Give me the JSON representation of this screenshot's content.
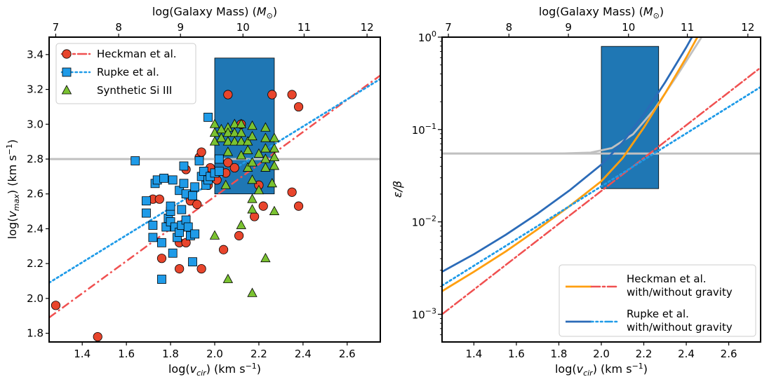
{
  "chart_data": [
    {
      "type": "scatter",
      "panel": "left",
      "xlabel": "log(v_cir) (km s^-1)",
      "ylabel": "log(v_max) (km s^-1)",
      "top_xlabel": "log(Galaxy Mass) (M_⊙)",
      "xlim": [
        1.25,
        2.75
      ],
      "ylim": [
        1.75,
        3.5
      ],
      "xticks": [
        "1.4",
        "1.6",
        "1.8",
        "2.0",
        "2.2",
        "2.4",
        "2.6"
      ],
      "yticks": [
        "1.8",
        "2.0",
        "2.2",
        "2.4",
        "2.6",
        "2.8",
        "3.0",
        "3.2",
        "3.4"
      ],
      "top_ticks": [
        "7",
        "8",
        "9",
        "10",
        "11",
        "12"
      ],
      "top_tick_positions_vcir": [
        1.28,
        1.565,
        1.845,
        2.128,
        2.405,
        2.69
      ],
      "horizontal_line": 2.8,
      "box": {
        "x": [
          2.0,
          2.27
        ],
        "y": [
          2.6,
          3.38
        ],
        "color": "#1f77b4"
      },
      "legend_position": "upper-left",
      "series": [
        {
          "name": "Heckman et al.",
          "marker": "circle",
          "color": "#e8452c",
          "line_color": "#f05050",
          "fit": {
            "x": [
              1.25,
              2.75
            ],
            "y": [
              1.89,
              3.28
            ]
          },
          "points": [
            [
              1.28,
              1.96
            ],
            [
              1.47,
              1.78
            ],
            [
              1.72,
              2.57
            ],
            [
              1.75,
              2.57
            ],
            [
              1.76,
              2.23
            ],
            [
              1.84,
              2.17
            ],
            [
              1.84,
              2.32
            ],
            [
              1.87,
              2.32
            ],
            [
              1.87,
              2.74
            ],
            [
              1.89,
              2.56
            ],
            [
              1.92,
              2.54
            ],
            [
              1.93,
              2.81
            ],
            [
              1.94,
              2.17
            ],
            [
              1.94,
              2.84
            ],
            [
              1.97,
              2.65
            ],
            [
              1.98,
              2.75
            ],
            [
              2.01,
              2.68
            ],
            [
              2.04,
              2.28
            ],
            [
              2.05,
              2.72
            ],
            [
              2.06,
              2.78
            ],
            [
              2.06,
              3.17
            ],
            [
              2.09,
              2.75
            ],
            [
              2.11,
              2.36
            ],
            [
              2.12,
              3.0
            ],
            [
              2.18,
              2.47
            ],
            [
              2.2,
              2.65
            ],
            [
              2.22,
              2.53
            ],
            [
              2.26,
              3.17
            ],
            [
              2.35,
              3.17
            ],
            [
              2.35,
              2.61
            ],
            [
              2.38,
              3.1
            ],
            [
              2.38,
              2.53
            ]
          ]
        },
        {
          "name": "Rupke et al.",
          "marker": "square",
          "color": "#1f9be8",
          "line_color": "#1f9be8",
          "fit": {
            "x": [
              1.25,
              2.75
            ],
            "y": [
              2.09,
              3.26
            ]
          },
          "points": [
            [
              1.64,
              2.79
            ],
            [
              1.69,
              2.49
            ],
            [
              1.69,
              2.56
            ],
            [
              1.72,
              2.42
            ],
            [
              1.72,
              2.35
            ],
            [
              1.73,
              2.66
            ],
            [
              1.74,
              2.68
            ],
            [
              1.76,
              2.32
            ],
            [
              1.76,
              2.11
            ],
            [
              1.77,
              2.69
            ],
            [
              1.78,
              2.41
            ],
            [
              1.79,
              2.46
            ],
            [
              1.8,
              2.5
            ],
            [
              1.8,
              2.53
            ],
            [
              1.8,
              2.44
            ],
            [
              1.81,
              2.26
            ],
            [
              1.81,
              2.68
            ],
            [
              1.82,
              2.41
            ],
            [
              1.83,
              2.35
            ],
            [
              1.84,
              2.38
            ],
            [
              1.84,
              2.62
            ],
            [
              1.85,
              2.42
            ],
            [
              1.85,
              2.51
            ],
            [
              1.86,
              2.66
            ],
            [
              1.86,
              2.76
            ],
            [
              1.87,
              2.45
            ],
            [
              1.87,
              2.6
            ],
            [
              1.88,
              2.41
            ],
            [
              1.89,
              2.36
            ],
            [
              1.9,
              2.21
            ],
            [
              1.9,
              2.59
            ],
            [
              1.91,
              2.37
            ],
            [
              1.91,
              2.64
            ],
            [
              1.93,
              2.79
            ],
            [
              1.94,
              2.7
            ],
            [
              1.95,
              2.73
            ],
            [
              1.96,
              2.65
            ],
            [
              1.97,
              2.68
            ],
            [
              1.98,
              2.7
            ],
            [
              1.97,
              3.04
            ],
            [
              2.0,
              2.72
            ],
            [
              2.02,
              2.8
            ],
            [
              2.02,
              2.73
            ]
          ]
        },
        {
          "name": "Synthetic Si III",
          "marker": "triangle",
          "color": "#7ac231",
          "points": [
            [
              2.0,
              2.36
            ],
            [
              2.06,
              2.11
            ],
            [
              2.05,
              2.65
            ],
            [
              2.06,
              2.98
            ],
            [
              2.0,
              3.0
            ],
            [
              2.0,
              2.95
            ],
            [
              2.0,
              2.9
            ],
            [
              2.03,
              2.97
            ],
            [
              2.03,
              2.92
            ],
            [
              2.06,
              2.95
            ],
            [
              2.06,
              2.9
            ],
            [
              2.06,
              2.84
            ],
            [
              2.09,
              3.0
            ],
            [
              2.09,
              2.95
            ],
            [
              2.09,
              2.9
            ],
            [
              2.12,
              3.0
            ],
            [
              2.12,
              2.95
            ],
            [
              2.12,
              2.9
            ],
            [
              2.12,
              2.82
            ],
            [
              2.12,
              2.42
            ],
            [
              2.15,
              2.9
            ],
            [
              2.15,
              2.85
            ],
            [
              2.15,
              2.75
            ],
            [
              2.17,
              2.99
            ],
            [
              2.17,
              2.93
            ],
            [
              2.17,
              2.78
            ],
            [
              2.17,
              2.68
            ],
            [
              2.17,
              2.57
            ],
            [
              2.17,
              2.51
            ],
            [
              2.17,
              2.03
            ],
            [
              2.2,
              2.83
            ],
            [
              2.2,
              2.62
            ],
            [
              2.23,
              2.98
            ],
            [
              2.23,
              2.92
            ],
            [
              2.23,
              2.86
            ],
            [
              2.23,
              2.8
            ],
            [
              2.23,
              2.75
            ],
            [
              2.23,
              2.23
            ],
            [
              2.26,
              2.66
            ],
            [
              2.27,
              2.92
            ],
            [
              2.27,
              2.86
            ],
            [
              2.27,
              2.81
            ],
            [
              2.27,
              2.76
            ],
            [
              2.27,
              2.5
            ]
          ]
        }
      ]
    },
    {
      "type": "line",
      "panel": "right",
      "xlabel": "log(v_cir) (km s^-1)",
      "ylabel": "ε/β",
      "top_xlabel": "log(Galaxy Mass) (M_⊙)",
      "xlim": [
        1.25,
        2.75
      ],
      "ylim_log10": [
        -3.3,
        0
      ],
      "yscale": "log",
      "xticks": [
        "1.4",
        "1.6",
        "1.8",
        "2.0",
        "2.2",
        "2.4",
        "2.6"
      ],
      "yticks": [
        {
          "base": "10",
          "exp": "0",
          "log": 0
        },
        {
          "base": "10",
          "exp": "−1",
          "log": -1
        },
        {
          "base": "10",
          "exp": "−2",
          "log": -2
        },
        {
          "base": "10",
          "exp": "−3",
          "log": -3
        }
      ],
      "top_ticks": [
        "7",
        "8",
        "9",
        "10",
        "11",
        "12"
      ],
      "top_tick_positions_vcir": [
        1.28,
        1.565,
        1.845,
        2.128,
        2.405,
        2.69
      ],
      "horizontal_line_log": -1.26,
      "box": {
        "x": [
          2.0,
          2.27
        ],
        "y_log": [
          -1.64,
          -0.1
        ],
        "color": "#1f77b4"
      },
      "legend_position": "lower-right",
      "legend": [
        {
          "label": "Heckman et al.",
          "label2": "with/without gravity",
          "solid_color": "#ff9f10",
          "dash_color": "#f05050"
        },
        {
          "label": "Rupke et al.",
          "label2": "with/without gravity",
          "solid_color": "#2b6bb8",
          "dash_color": "#1f9be8"
        }
      ],
      "series": [
        {
          "name": "Heckman et al. with gravity",
          "style": "solid",
          "color": "#ff9f10",
          "x": [
            1.25,
            1.4,
            1.55,
            1.7,
            1.85,
            2.0,
            2.1,
            2.2,
            2.3,
            2.4,
            2.5
          ],
          "y_log": [
            -2.75,
            -2.54,
            -2.32,
            -2.08,
            -1.83,
            -1.56,
            -1.31,
            -0.98,
            -0.61,
            -0.22,
            0.2
          ]
        },
        {
          "name": "Heckman et al. without gravity",
          "style": "dashdot",
          "color": "#f05050",
          "x": [
            1.25,
            2.75
          ],
          "y_log": [
            -3.0,
            -0.33
          ]
        },
        {
          "name": "Rupke et al. with gravity",
          "style": "solid",
          "color": "#2b6bb8",
          "x": [
            1.25,
            1.4,
            1.55,
            1.7,
            1.85,
            2.0,
            2.1,
            2.2,
            2.3,
            2.4,
            2.5
          ],
          "y_log": [
            -2.54,
            -2.35,
            -2.14,
            -1.91,
            -1.66,
            -1.38,
            -1.14,
            -0.84,
            -0.49,
            -0.11,
            0.3
          ]
        },
        {
          "name": "Rupke et al. without gravity",
          "style": "dotted",
          "color": "#1f9be8",
          "x": [
            1.25,
            2.75
          ],
          "y_log": [
            -2.69,
            -0.54
          ]
        },
        {
          "name": "gravity curve (grey)",
          "style": "solid",
          "color": "#c0c0c0",
          "x": [
            1.25,
            1.8,
            1.95,
            2.05,
            2.15,
            2.25,
            2.35,
            2.45,
            2.5
          ],
          "y_log": [
            -1.26,
            -1.26,
            -1.25,
            -1.2,
            -1.05,
            -0.78,
            -0.44,
            -0.08,
            0.1
          ]
        }
      ]
    }
  ]
}
